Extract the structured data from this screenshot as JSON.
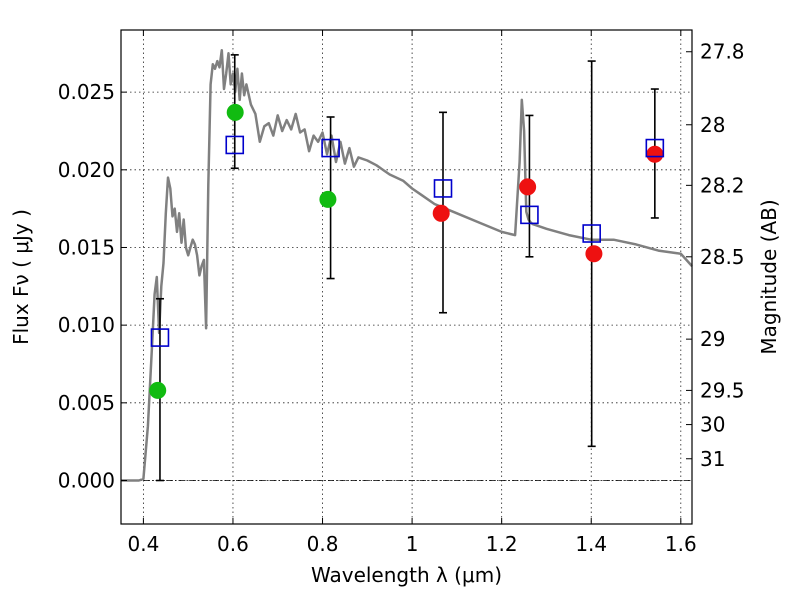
{
  "chart_data": {
    "type": "scatter",
    "xlabel": "Wavelength  λ (μm)",
    "ylabel": "Flux  Fν  ( μJy )",
    "y2label": "Magnitude (AB)",
    "xlim": [
      0.35,
      1.625
    ],
    "ylim": [
      -0.0028,
      0.029
    ],
    "x_ticks": [
      0.4,
      0.6,
      0.8,
      1.0,
      1.2,
      1.4,
      1.6
    ],
    "x_tick_labels": [
      "0.4",
      "0.6",
      "0.8",
      "1",
      "1.2",
      "1.4",
      "1.6"
    ],
    "y_ticks": [
      0.0,
      0.005,
      0.01,
      0.015,
      0.02,
      0.025
    ],
    "y_tick_labels": [
      "0.000",
      "0.005",
      "0.010",
      "0.015",
      "0.020",
      "0.025"
    ],
    "y2_ticks": [
      {
        "label": "27.8",
        "flux": 0.0276
      },
      {
        "label": "28",
        "flux": 0.0229
      },
      {
        "label": "28.2",
        "flux": 0.019
      },
      {
        "label": "28.5",
        "flux": 0.0144
      },
      {
        "label": "29",
        "flux": 0.0091
      },
      {
        "label": "29.5",
        "flux": 0.0058
      },
      {
        "label": "30",
        "flux": 0.0036
      },
      {
        "label": "31",
        "flux": 0.0014
      }
    ],
    "grid": true,
    "zero_line": true,
    "colors": {
      "model": "#808080",
      "green": "#11bb11",
      "red": "#ee1111",
      "square": "#0000cc",
      "error": "#000000"
    },
    "model_spectrum": {
      "x": [
        0.35,
        0.39,
        0.4,
        0.41,
        0.42,
        0.425,
        0.43,
        0.435,
        0.44,
        0.445,
        0.45,
        0.455,
        0.46,
        0.465,
        0.47,
        0.475,
        0.48,
        0.485,
        0.49,
        0.495,
        0.5,
        0.505,
        0.51,
        0.515,
        0.52,
        0.525,
        0.53,
        0.535,
        0.54,
        0.545,
        0.55,
        0.555,
        0.56,
        0.565,
        0.57,
        0.575,
        0.58,
        0.585,
        0.59,
        0.595,
        0.6,
        0.605,
        0.61,
        0.615,
        0.62,
        0.625,
        0.63,
        0.64,
        0.65,
        0.66,
        0.67,
        0.68,
        0.69,
        0.7,
        0.71,
        0.72,
        0.73,
        0.74,
        0.75,
        0.76,
        0.77,
        0.78,
        0.79,
        0.8,
        0.81,
        0.82,
        0.83,
        0.84,
        0.85,
        0.86,
        0.87,
        0.88,
        0.9,
        0.92,
        0.95,
        0.98,
        1.0,
        1.02,
        1.05,
        1.1,
        1.15,
        1.2,
        1.23,
        1.24,
        1.245,
        1.25,
        1.255,
        1.26,
        1.265,
        1.27,
        1.3,
        1.35,
        1.4,
        1.45,
        1.5,
        1.55,
        1.6,
        1.625
      ],
      "y": [
        0.0,
        0.0,
        0.0001,
        0.0035,
        0.009,
        0.012,
        0.0131,
        0.0095,
        0.0125,
        0.014,
        0.0172,
        0.0195,
        0.0188,
        0.017,
        0.0175,
        0.016,
        0.0172,
        0.0153,
        0.0168,
        0.015,
        0.0145,
        0.015,
        0.0155,
        0.0152,
        0.0145,
        0.0132,
        0.0138,
        0.0142,
        0.0098,
        0.019,
        0.0255,
        0.0268,
        0.0265,
        0.027,
        0.0266,
        0.0277,
        0.0252,
        0.0262,
        0.0275,
        0.0255,
        0.0262,
        0.025,
        0.0265,
        0.0245,
        0.0262,
        0.0248,
        0.0255,
        0.0242,
        0.0236,
        0.0218,
        0.0228,
        0.023,
        0.0222,
        0.0235,
        0.0225,
        0.0232,
        0.0226,
        0.0236,
        0.0224,
        0.0226,
        0.0212,
        0.0222,
        0.0218,
        0.0224,
        0.021,
        0.0222,
        0.0205,
        0.0218,
        0.0204,
        0.0214,
        0.0202,
        0.0208,
        0.0206,
        0.0203,
        0.0197,
        0.0193,
        0.0188,
        0.0184,
        0.0178,
        0.0172,
        0.0166,
        0.016,
        0.0158,
        0.0205,
        0.0245,
        0.0225,
        0.0173,
        0.0168,
        0.0166,
        0.0165,
        0.0162,
        0.0158,
        0.0155,
        0.0155,
        0.0152,
        0.0148,
        0.0146,
        0.0138
      ]
    },
    "series": [
      {
        "marker": "circle",
        "color": "green",
        "x": [
          0.432,
          0.605,
          0.812
        ],
        "y": [
          0.0058,
          0.0237,
          0.0181
        ]
      },
      {
        "marker": "circle",
        "color": "red",
        "x": [
          1.065,
          1.258,
          1.406,
          1.542
        ],
        "y": [
          0.0172,
          0.0189,
          0.0146,
          0.021
        ]
      },
      {
        "marker": "open-square",
        "color": "square",
        "x": [
          0.437,
          0.604,
          0.818,
          1.069,
          1.262,
          1.401,
          1.542
        ],
        "y": [
          0.0092,
          0.0216,
          0.0214,
          0.0188,
          0.0171,
          0.0159,
          0.0214
        ],
        "err_low": [
          0.0092,
          0.0015,
          0.0084,
          0.008,
          0.0027,
          0.0137,
          0.0045
        ],
        "err_high": [
          0.0025,
          0.0058,
          0.002,
          0.0049,
          0.0064,
          0.0111,
          0.0038
        ]
      }
    ]
  }
}
